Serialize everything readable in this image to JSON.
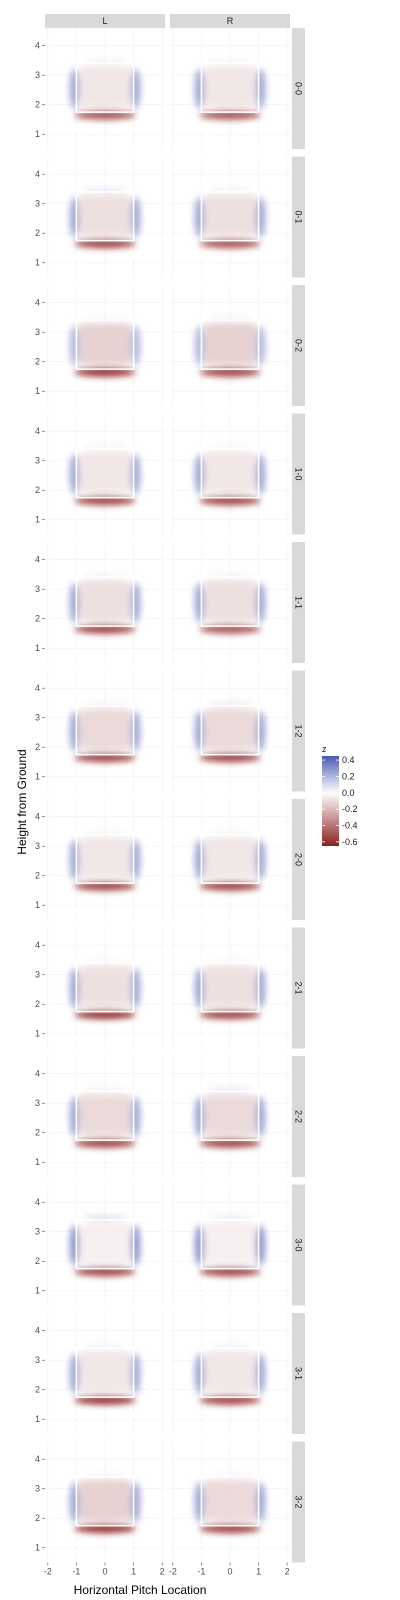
{
  "colors": {
    "positive": "#4a5ab0",
    "neutral": "#ffffff",
    "negative": "#8c2020",
    "panel_background": "#ffffff",
    "strip_background": "#d9d9d9",
    "zone_outline": "#ffffff"
  },
  "chart_data": {
    "type": "heatmap",
    "xlabel": "Horizontal Pitch Location",
    "ylabel": "Height from Ground",
    "columns": [
      "L",
      "R"
    ],
    "rows": [
      "0-0",
      "0-1",
      "0-2",
      "1-0",
      "1-1",
      "1-2",
      "2-0",
      "2-1",
      "2-2",
      "3-0",
      "3-1",
      "3-2"
    ],
    "x_ticks": [
      -2,
      -1,
      0,
      1,
      2
    ],
    "x_tick_labels": [
      "-2",
      "-1",
      "0",
      "1",
      "2"
    ],
    "y_ticks": [
      1,
      2,
      3,
      4
    ],
    "y_tick_labels": [
      "1",
      "2",
      "3",
      "4"
    ],
    "xlim": [
      -2.1,
      2.1
    ],
    "ylim": [
      0.5,
      4.6
    ],
    "strike_zone": {
      "x": [
        -1,
        1
      ],
      "y": [
        1.75,
        3.4
      ]
    },
    "legend": {
      "title": "z",
      "breaks": [
        0.4,
        0.2,
        0.0,
        -0.2,
        -0.4,
        -0.6
      ],
      "labels": [
        "0.4",
        "0.2",
        "0.0",
        "-0.2",
        "-0.4",
        "-0.6"
      ],
      "limits": [
        -0.65,
        0.45
      ],
      "position": "right"
    },
    "cells": [
      {
        "count": "0-0",
        "hand": "L",
        "left_edge": 0.25,
        "right_edge": 0.25,
        "top_edge": 0.12,
        "bottom_edge": -0.5,
        "interior": -0.08
      },
      {
        "count": "0-0",
        "hand": "R",
        "left_edge": 0.25,
        "right_edge": 0.25,
        "top_edge": 0.1,
        "bottom_edge": -0.5,
        "interior": -0.08
      },
      {
        "count": "0-1",
        "hand": "L",
        "left_edge": 0.25,
        "right_edge": 0.25,
        "top_edge": 0.15,
        "bottom_edge": -0.55,
        "interior": -0.1
      },
      {
        "count": "0-1",
        "hand": "R",
        "left_edge": 0.25,
        "right_edge": 0.25,
        "top_edge": 0.12,
        "bottom_edge": -0.5,
        "interior": -0.1
      },
      {
        "count": "0-2",
        "hand": "L",
        "left_edge": 0.2,
        "right_edge": 0.2,
        "top_edge": 0.1,
        "bottom_edge": -0.6,
        "interior": -0.15
      },
      {
        "count": "0-2",
        "hand": "R",
        "left_edge": 0.2,
        "right_edge": 0.2,
        "top_edge": 0.12,
        "bottom_edge": -0.55,
        "interior": -0.15
      },
      {
        "count": "1-0",
        "hand": "L",
        "left_edge": 0.25,
        "right_edge": 0.25,
        "top_edge": 0.12,
        "bottom_edge": -0.55,
        "interior": -0.08
      },
      {
        "count": "1-0",
        "hand": "R",
        "left_edge": 0.25,
        "right_edge": 0.25,
        "top_edge": 0.1,
        "bottom_edge": -0.55,
        "interior": -0.08
      },
      {
        "count": "1-1",
        "hand": "L",
        "left_edge": 0.25,
        "right_edge": 0.25,
        "top_edge": 0.12,
        "bottom_edge": -0.55,
        "interior": -0.1
      },
      {
        "count": "1-1",
        "hand": "R",
        "left_edge": 0.25,
        "right_edge": 0.25,
        "top_edge": 0.12,
        "bottom_edge": -0.5,
        "interior": -0.1
      },
      {
        "count": "1-2",
        "hand": "L",
        "left_edge": 0.25,
        "right_edge": 0.25,
        "top_edge": 0.12,
        "bottom_edge": -0.55,
        "interior": -0.12
      },
      {
        "count": "1-2",
        "hand": "R",
        "left_edge": 0.25,
        "right_edge": 0.25,
        "top_edge": 0.15,
        "bottom_edge": -0.55,
        "interior": -0.12
      },
      {
        "count": "2-0",
        "hand": "L",
        "left_edge": 0.25,
        "right_edge": 0.25,
        "top_edge": 0.1,
        "bottom_edge": -0.55,
        "interior": -0.08
      },
      {
        "count": "2-0",
        "hand": "R",
        "left_edge": 0.25,
        "right_edge": 0.25,
        "top_edge": 0.1,
        "bottom_edge": -0.55,
        "interior": -0.08
      },
      {
        "count": "2-1",
        "hand": "L",
        "left_edge": 0.25,
        "right_edge": 0.25,
        "top_edge": 0.1,
        "bottom_edge": -0.6,
        "interior": -0.1
      },
      {
        "count": "2-1",
        "hand": "R",
        "left_edge": 0.25,
        "right_edge": 0.25,
        "top_edge": 0.1,
        "bottom_edge": -0.55,
        "interior": -0.1
      },
      {
        "count": "2-2",
        "hand": "L",
        "left_edge": 0.25,
        "right_edge": 0.25,
        "top_edge": 0.12,
        "bottom_edge": -0.55,
        "interior": -0.12
      },
      {
        "count": "2-2",
        "hand": "R",
        "left_edge": 0.25,
        "right_edge": 0.25,
        "top_edge": 0.15,
        "bottom_edge": -0.55,
        "interior": -0.12
      },
      {
        "count": "3-0",
        "hand": "L",
        "left_edge": 0.3,
        "right_edge": 0.3,
        "top_edge": 0.2,
        "bottom_edge": -0.55,
        "interior": -0.05
      },
      {
        "count": "3-0",
        "hand": "R",
        "left_edge": 0.3,
        "right_edge": 0.3,
        "top_edge": 0.15,
        "bottom_edge": -0.55,
        "interior": -0.05
      },
      {
        "count": "3-1",
        "hand": "L",
        "left_edge": 0.25,
        "right_edge": 0.25,
        "top_edge": 0.12,
        "bottom_edge": -0.6,
        "interior": -0.08
      },
      {
        "count": "3-1",
        "hand": "R",
        "left_edge": 0.25,
        "right_edge": 0.25,
        "top_edge": 0.12,
        "bottom_edge": -0.55,
        "interior": -0.08
      },
      {
        "count": "3-2",
        "hand": "L",
        "left_edge": 0.25,
        "right_edge": 0.25,
        "top_edge": 0.1,
        "bottom_edge": -0.6,
        "interior": -0.15
      },
      {
        "count": "3-2",
        "hand": "R",
        "left_edge": 0.25,
        "right_edge": 0.25,
        "top_edge": 0.1,
        "bottom_edge": -0.55,
        "interior": -0.12
      }
    ]
  }
}
